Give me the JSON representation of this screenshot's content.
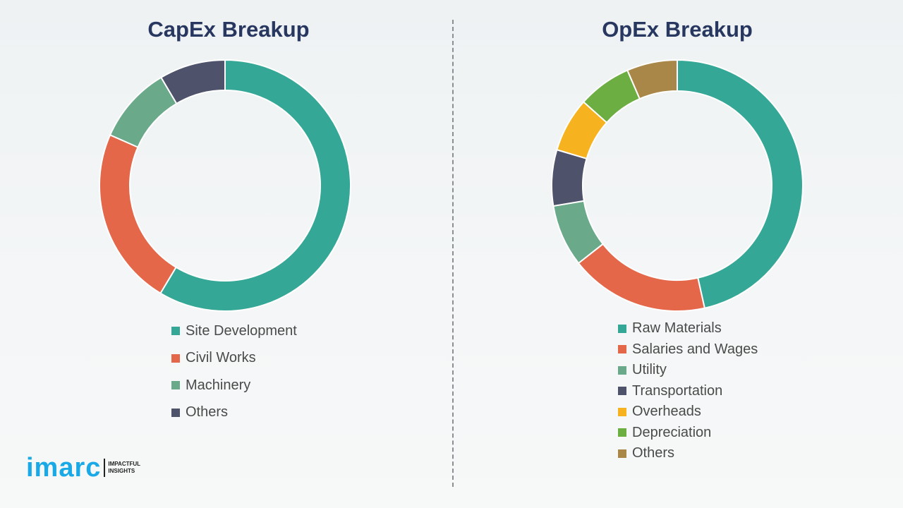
{
  "chart_data": [
    {
      "type": "pie",
      "title": "CapEx Breakup",
      "categories": [
        "Site Development",
        "Civil Works",
        "Machinery",
        "Others"
      ],
      "values": [
        58.6,
        23.0,
        9.9,
        8.5
      ],
      "colors": [
        "#35a797",
        "#e4674a",
        "#6aa98a",
        "#4f526b"
      ],
      "legend": "bottom"
    },
    {
      "type": "pie",
      "title": "OpEx Breakup",
      "categories": [
        "Raw Materials",
        "Salaries and Wages",
        "Utility",
        "Transportation",
        "Overheads",
        "Depreciation",
        "Others"
      ],
      "values": [
        46.5,
        17.9,
        8.0,
        7.2,
        7.0,
        6.9,
        6.5
      ],
      "colors": [
        "#35a797",
        "#e4674a",
        "#6aa98a",
        "#4f526b",
        "#f6b21f",
        "#6cae42",
        "#a98748"
      ],
      "legend": "bottom"
    }
  ],
  "logo": {
    "word": "imarc",
    "tagline_1": "IMPACTFUL",
    "tagline_2": "INSIGHTS"
  }
}
